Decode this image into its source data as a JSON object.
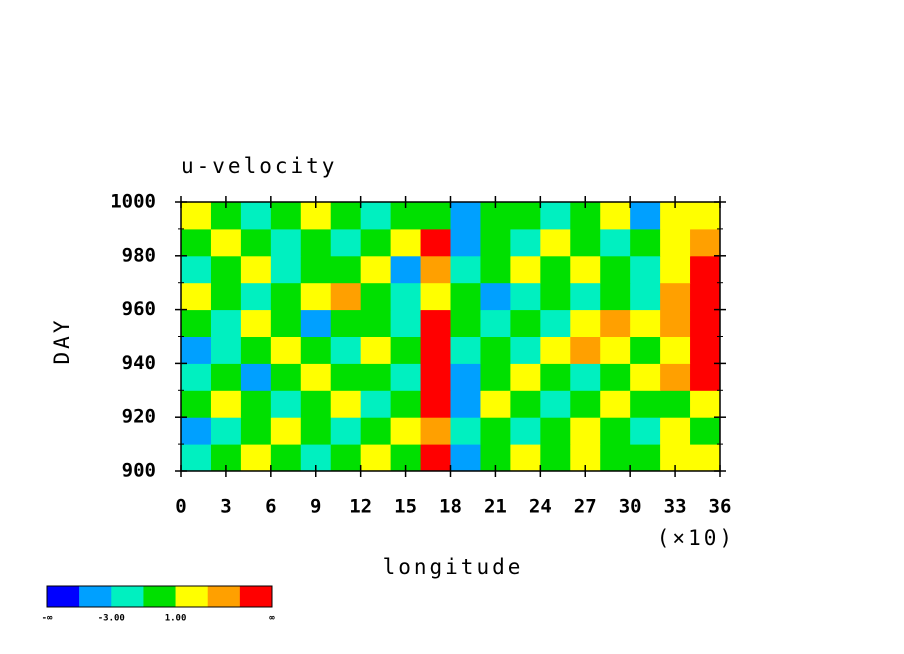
{
  "chart_data": {
    "type": "contourf",
    "title": "u-velocity",
    "xlabel": "longitude",
    "xnote": "(×10)",
    "ylabel": "DAY",
    "xlim": [
      0,
      36
    ],
    "ylim": [
      900,
      1000
    ],
    "xticks": [
      0,
      3,
      6,
      9,
      12,
      15,
      18,
      21,
      24,
      27,
      30,
      33,
      36
    ],
    "yticks": [
      900,
      920,
      940,
      960,
      980,
      1000
    ],
    "yminorticks": [
      910,
      930,
      950,
      970,
      990
    ],
    "x": [
      1,
      3,
      5,
      7,
      9,
      11,
      13,
      15,
      17,
      19,
      21,
      23,
      25,
      27,
      29,
      31,
      33,
      35
    ],
    "y": [
      905,
      915,
      925,
      935,
      945,
      955,
      965,
      975,
      985,
      995
    ],
    "z": [
      [
        -2,
        0,
        2,
        0,
        -2,
        0,
        2,
        0,
        6,
        -4,
        0,
        2,
        0,
        2,
        0,
        0,
        2,
        2
      ],
      [
        -4,
        -2,
        0,
        2,
        0,
        -2,
        0,
        2,
        4,
        -2,
        0,
        -2,
        0,
        2,
        0,
        -2,
        2,
        0
      ],
      [
        0,
        2,
        0,
        -2,
        0,
        2,
        -2,
        0,
        6,
        -4,
        2,
        0,
        -2,
        0,
        2,
        0,
        0,
        2
      ],
      [
        -2,
        0,
        -4,
        0,
        2,
        0,
        0,
        -2,
        6,
        -4,
        0,
        2,
        0,
        -2,
        0,
        2,
        4,
        6
      ],
      [
        -4,
        -2,
        0,
        2,
        0,
        -2,
        2,
        0,
        6,
        -2,
        0,
        -2,
        2,
        4,
        2,
        0,
        2,
        6
      ],
      [
        0,
        -2,
        2,
        0,
        -4,
        0,
        0,
        -2,
        6,
        0,
        -2,
        0,
        -2,
        2,
        4,
        2,
        4,
        6
      ],
      [
        2,
        0,
        -2,
        0,
        2,
        4,
        0,
        -2,
        2,
        0,
        -4,
        -2,
        0,
        -2,
        0,
        -2,
        4,
        6
      ],
      [
        -2,
        0,
        2,
        -2,
        0,
        0,
        2,
        -4,
        4,
        -2,
        0,
        2,
        0,
        2,
        0,
        -2,
        2,
        6
      ],
      [
        0,
        2,
        0,
        -2,
        0,
        -2,
        0,
        2,
        6,
        -4,
        0,
        -2,
        2,
        0,
        -2,
        0,
        2,
        4
      ],
      [
        2,
        0,
        -2,
        0,
        2,
        0,
        -2,
        0,
        0,
        -4,
        0,
        0,
        -2,
        0,
        2,
        -4,
        2,
        2
      ]
    ],
    "colors": [
      "#0000ff",
      "#00a0ff",
      "#00f0c0",
      "#00e000",
      "#ffff00",
      "#ffa000",
      "#ff0000"
    ],
    "colorbar_min": "-∞",
    "colorbar_max": "∞",
    "colorbar_levels": [
      {
        "value": -3,
        "label": "-3.00"
      },
      {
        "value": 1,
        "label": "1.00"
      }
    ]
  }
}
